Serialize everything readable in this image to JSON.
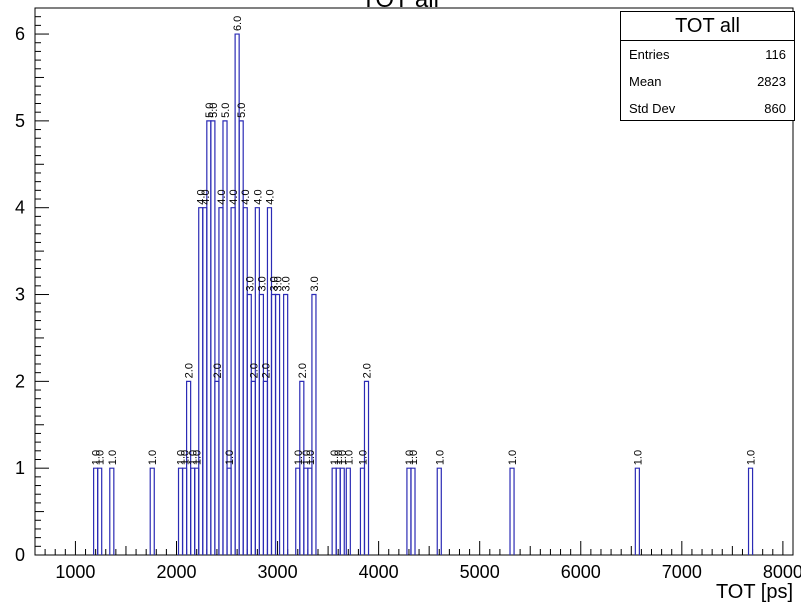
{
  "title": "TOT all",
  "stats": {
    "title": "TOT all",
    "rows": [
      {
        "label": "Entries",
        "value": "116"
      },
      {
        "label": "Mean",
        "value": "2823"
      },
      {
        "label": "Std Dev",
        "value": "860"
      }
    ]
  },
  "chart_data": {
    "type": "bar",
    "title": "TOT all",
    "xlabel": "TOT [ps]",
    "ylabel": "",
    "xlim": [
      600,
      8100
    ],
    "ylim": [
      0,
      6.3
    ],
    "xticks": [
      1000,
      2000,
      3000,
      4000,
      5000,
      6000,
      7000,
      8000
    ],
    "yticks": [
      0,
      1,
      2,
      3,
      4,
      5,
      6
    ],
    "bin_width": 40,
    "line_color": "#2b2bb5",
    "bins": [
      {
        "x": 1180,
        "y": 1,
        "label": "1.0"
      },
      {
        "x": 1220,
        "y": 1,
        "label": "1.0"
      },
      {
        "x": 1340,
        "y": 1,
        "label": "1.0"
      },
      {
        "x": 1740,
        "y": 1,
        "label": "1.0"
      },
      {
        "x": 2020,
        "y": 1,
        "label": "1.0"
      },
      {
        "x": 2060,
        "y": 1,
        "label": "1.0"
      },
      {
        "x": 2100,
        "y": 2,
        "label": "2.0"
      },
      {
        "x": 2140,
        "y": 1,
        "label": "1.0"
      },
      {
        "x": 2180,
        "y": 1,
        "label": "1.0"
      },
      {
        "x": 2220,
        "y": 4,
        "label": "4.0"
      },
      {
        "x": 2260,
        "y": 4,
        "label": "4.0"
      },
      {
        "x": 2300,
        "y": 5,
        "label": "5.0"
      },
      {
        "x": 2340,
        "y": 5,
        "label": "5.0"
      },
      {
        "x": 2380,
        "y": 2,
        "label": "2.0"
      },
      {
        "x": 2420,
        "y": 4,
        "label": "4.0"
      },
      {
        "x": 2460,
        "y": 5,
        "label": "5.0"
      },
      {
        "x": 2500,
        "y": 1,
        "label": "1.0"
      },
      {
        "x": 2540,
        "y": 4,
        "label": "4.0"
      },
      {
        "x": 2580,
        "y": 6,
        "label": "6.0"
      },
      {
        "x": 2620,
        "y": 5,
        "label": "5.0"
      },
      {
        "x": 2660,
        "y": 4,
        "label": "4.0"
      },
      {
        "x": 2700,
        "y": 3,
        "label": "3.0"
      },
      {
        "x": 2740,
        "y": 2,
        "label": "2.0"
      },
      {
        "x": 2780,
        "y": 4,
        "label": "4.0"
      },
      {
        "x": 2820,
        "y": 3,
        "label": "3.0"
      },
      {
        "x": 2860,
        "y": 2,
        "label": "2.0"
      },
      {
        "x": 2900,
        "y": 4,
        "label": "4.0"
      },
      {
        "x": 2940,
        "y": 3,
        "label": "3.0"
      },
      {
        "x": 2980,
        "y": 3,
        "label": "3.0"
      },
      {
        "x": 3060,
        "y": 3,
        "label": "3.0"
      },
      {
        "x": 3180,
        "y": 1,
        "label": "1.0"
      },
      {
        "x": 3220,
        "y": 2,
        "label": "2.0"
      },
      {
        "x": 3260,
        "y": 1,
        "label": "1.0"
      },
      {
        "x": 3300,
        "y": 1,
        "label": "1.0"
      },
      {
        "x": 3340,
        "y": 3,
        "label": "3.0"
      },
      {
        "x": 3540,
        "y": 1,
        "label": "1.0"
      },
      {
        "x": 3580,
        "y": 1,
        "label": "1.0"
      },
      {
        "x": 3620,
        "y": 1,
        "label": "1.0"
      },
      {
        "x": 3680,
        "y": 1,
        "label": "1.0"
      },
      {
        "x": 3820,
        "y": 1,
        "label": "1.0"
      },
      {
        "x": 3860,
        "y": 2,
        "label": "2.0"
      },
      {
        "x": 4280,
        "y": 1,
        "label": "1.0"
      },
      {
        "x": 4320,
        "y": 1,
        "label": "1.0"
      },
      {
        "x": 4580,
        "y": 1,
        "label": "1.0"
      },
      {
        "x": 5300,
        "y": 1,
        "label": "1.0"
      },
      {
        "x": 6540,
        "y": 1,
        "label": "1.0"
      },
      {
        "x": 7660,
        "y": 1,
        "label": "1.0"
      }
    ]
  }
}
